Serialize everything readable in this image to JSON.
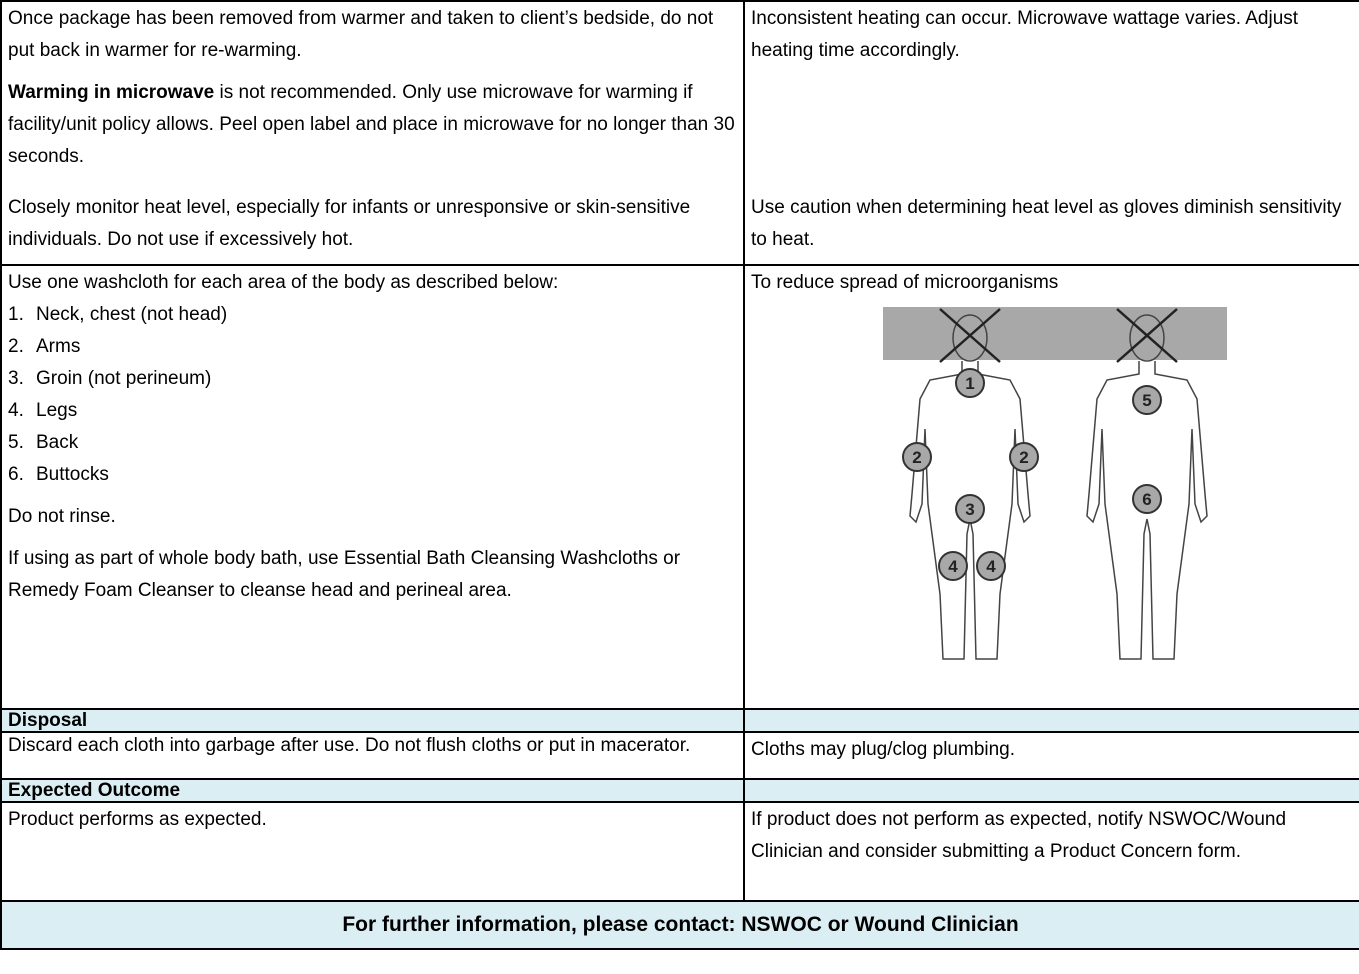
{
  "rows": [
    {
      "left": [
        "Once package has been removed from warmer and taken to client’s bedside, do not put back in warmer for re-warming.",
        {
          "bold": "Warming in microwave",
          "text": " is not recommended. Only use microwave for warming if facility/unit policy allows. Peel open label and place in microwave for no longer than 30 seconds."
        }
      ],
      "right": "Inconsistent heating can occur. Microwave wattage varies. Adjust heating time accordingly."
    },
    {
      "left": "Closely monitor heat level, especially for infants or unresponsive or skin-sensitive individuals. Do not use if excessively hot.",
      "right": "Use caution when determining heat level as gloves diminish sensitivity to heat."
    },
    {
      "intro": "Use one washcloth for each area of the body as described below:",
      "list": [
        {
          "num": "1.",
          "text": "Neck, chest (not head)"
        },
        {
          "num": "2.",
          "text": "Arms"
        },
        {
          "num": "3.",
          "text": "Groin (not perineum)"
        },
        {
          "num": "4.",
          "text": "Legs"
        },
        {
          "num": "5.",
          "text": "Back"
        },
        {
          "num": "6.",
          "text": "Buttocks"
        }
      ],
      "after": [
        "Do not rinse.",
        "If using as part of whole body bath, use Essential Bath Cleansing Washcloths or Remedy Foam Cleanser to cleanse head and perineal area."
      ],
      "right": "To reduce spread of microorganisms",
      "figure_markers": [
        "1",
        "2",
        "2",
        "3",
        "4",
        "4",
        "5",
        "6"
      ]
    }
  ],
  "disposal": {
    "heading": "Disposal",
    "left": "Discard each cloth into garbage after use.  Do not flush cloths or put in macerator.",
    "right": "Cloths may plug/clog plumbing."
  },
  "outcome": {
    "heading": "Expected Outcome",
    "left": "Product performs as expected.",
    "right": "If product does not perform as expected, notify NSWOC/Wound Clinician and consider submitting a Product Concern form."
  },
  "footer": "For further information, please contact: NSWOC or Wound Clinician"
}
